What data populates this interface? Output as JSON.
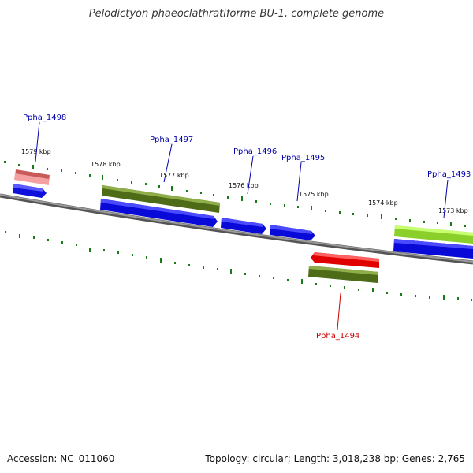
{
  "title": "Pelodictyon phaeoclathratiforme BU-1, complete genome",
  "footer": {
    "accession": "Accession: NC_011060",
    "summary": "Topology: circular; Length: 3,018,238 bp; Genes: 2,765"
  },
  "ticks": [
    {
      "label": "1579 kbp"
    },
    {
      "label": "1578 kbp"
    },
    {
      "label": "1577 kbp"
    },
    {
      "label": "1576 kbp"
    },
    {
      "label": "1575 kbp"
    },
    {
      "label": "1574 kbp"
    },
    {
      "label": "1573 kbp"
    }
  ],
  "genes": [
    {
      "name": "Ppha_1498",
      "color": "#0000aa"
    },
    {
      "name": "Ppha_1497",
      "color": "#0000aa"
    },
    {
      "name": "Ppha_1496",
      "color": "#0000aa"
    },
    {
      "name": "Ppha_1495",
      "color": "#0000aa"
    },
    {
      "name": "Ppha_1494",
      "color": "#cc0000"
    },
    {
      "name": "Ppha_1493",
      "color": "#0000aa"
    }
  ],
  "colors": {
    "backbone": "#7a7a7a",
    "cds_forward": "#0000ee",
    "cds_reverse": "#ee0000",
    "gene_olive": "#6b8e23",
    "gene_lime": "#9acd32",
    "gene_pink": "#f08080",
    "tick_green": "#1a7a1a"
  }
}
